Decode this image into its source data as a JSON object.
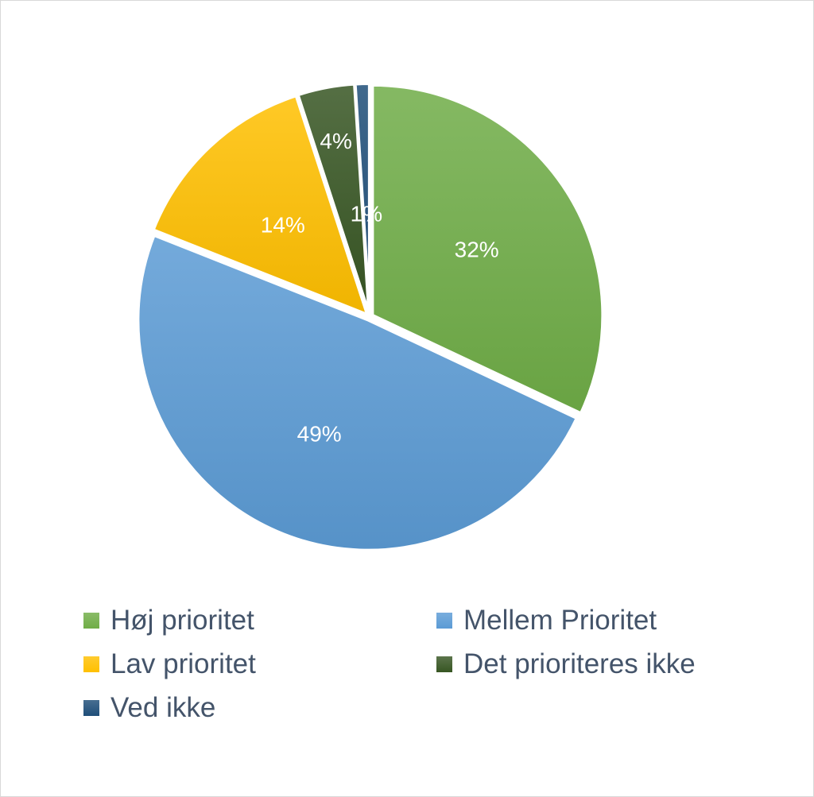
{
  "chart_data": {
    "type": "pie",
    "title": "",
    "slices": [
      {
        "name": "Høj prioritet",
        "value": 32,
        "label": "32%",
        "color": "#70ad47"
      },
      {
        "name": "Mellem Prioritet",
        "value": 49,
        "label": "49%",
        "color": "#5b9bd5"
      },
      {
        "name": "Lav prioritet",
        "value": 14,
        "label": "14%",
        "color": "#ffc000"
      },
      {
        "name": "Det prioriteres ikke",
        "value": 4,
        "label": "4%",
        "color": "#375623"
      },
      {
        "name": "Ved ikke",
        "value": 1,
        "label": "1%",
        "color": "#1f4e79"
      }
    ],
    "legend_position": "bottom"
  },
  "legend": {
    "items": [
      {
        "label": "Høj prioritet",
        "color": "#70ad47"
      },
      {
        "label": "Mellem Prioritet",
        "color": "#5b9bd5"
      },
      {
        "label": "Lav prioritet",
        "color": "#ffc000"
      },
      {
        "label": "Det prioriteres ikke",
        "color": "#375623"
      },
      {
        "label": "Ved ikke",
        "color": "#1f4e79"
      }
    ]
  }
}
